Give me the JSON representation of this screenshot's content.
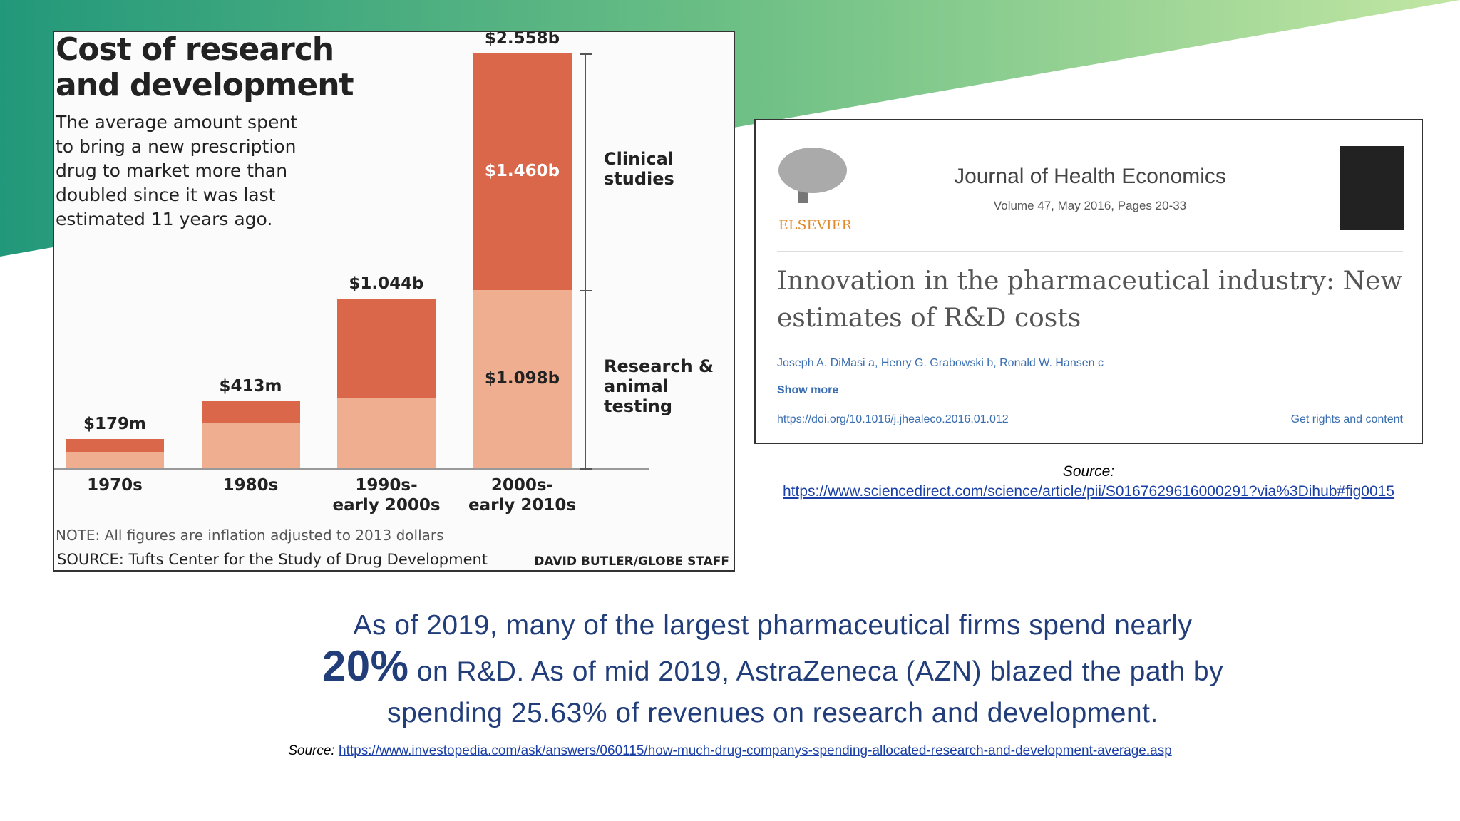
{
  "chart_data": {
    "type": "bar-stacked",
    "title": "Cost of research and development",
    "subtitle": "The average amount spent to bring a new prescription drug to market more than doubled since it was last estimated 11 years ago.",
    "categories": [
      "1970s",
      "1980s",
      "1990s- early 2000s",
      "2000s- early 2010s"
    ],
    "series": [
      {
        "name": "Research & animal testing",
        "color": "#efae8f",
        "values": [
          103,
          275,
          430,
          1098
        ],
        "value_labels": [
          null,
          null,
          null,
          "$1.098b"
        ]
      },
      {
        "name": "Clinical studies",
        "color": "#da674a",
        "values": [
          76,
          138,
          614,
          1460
        ],
        "value_labels": [
          null,
          null,
          null,
          "$1.460b"
        ]
      }
    ],
    "totals": {
      "values": [
        179,
        413,
        1044,
        2558
      ],
      "value_labels": [
        "$179m",
        "$413m",
        "$1.044b",
        "$2.558b"
      ]
    },
    "note": "NOTE: All figures are inflation adjusted to 2013 dollars",
    "source": "SOURCE: Tufts Center for the Study of Drug Development",
    "credit": "DAVID BUTLER/GLOBE STAFF"
  },
  "journal": {
    "name": "Journal of Health Economics",
    "volume": "Volume 47, May 2016, Pages 20-33",
    "publisher": "ELSEVIER",
    "article_title": "Innovation in the pharmaceutical industry: New estimates of R&D costs",
    "authors": "Joseph A. DiMasi a, Henry G. Grabowski b, Ronald W. Hansen c",
    "show_more": "Show more",
    "doi": "https://doi.org/10.1016/j.jhealeco.2016.01.012",
    "rights": "Get rights and content"
  },
  "journal_source": {
    "label": "Source:",
    "url": "https://www.sciencedirect.com/science/article/pii/S0167629616000291?via%3Dihub#fig0015"
  },
  "body": {
    "line1": "As of 2019, many of the largest pharmaceutical firms spend nearly",
    "highlight": "20%",
    "rest": "on R&D. As of mid 2019, AstraZeneca (AZN) blazed the path by spending 25.63% of revenues on research and development."
  },
  "footer_source": {
    "label": "Source:",
    "url": "https://www.investopedia.com/ask/answers/060115/how-much-drug-companys-spending-allocated-research-and-development-average.asp"
  }
}
